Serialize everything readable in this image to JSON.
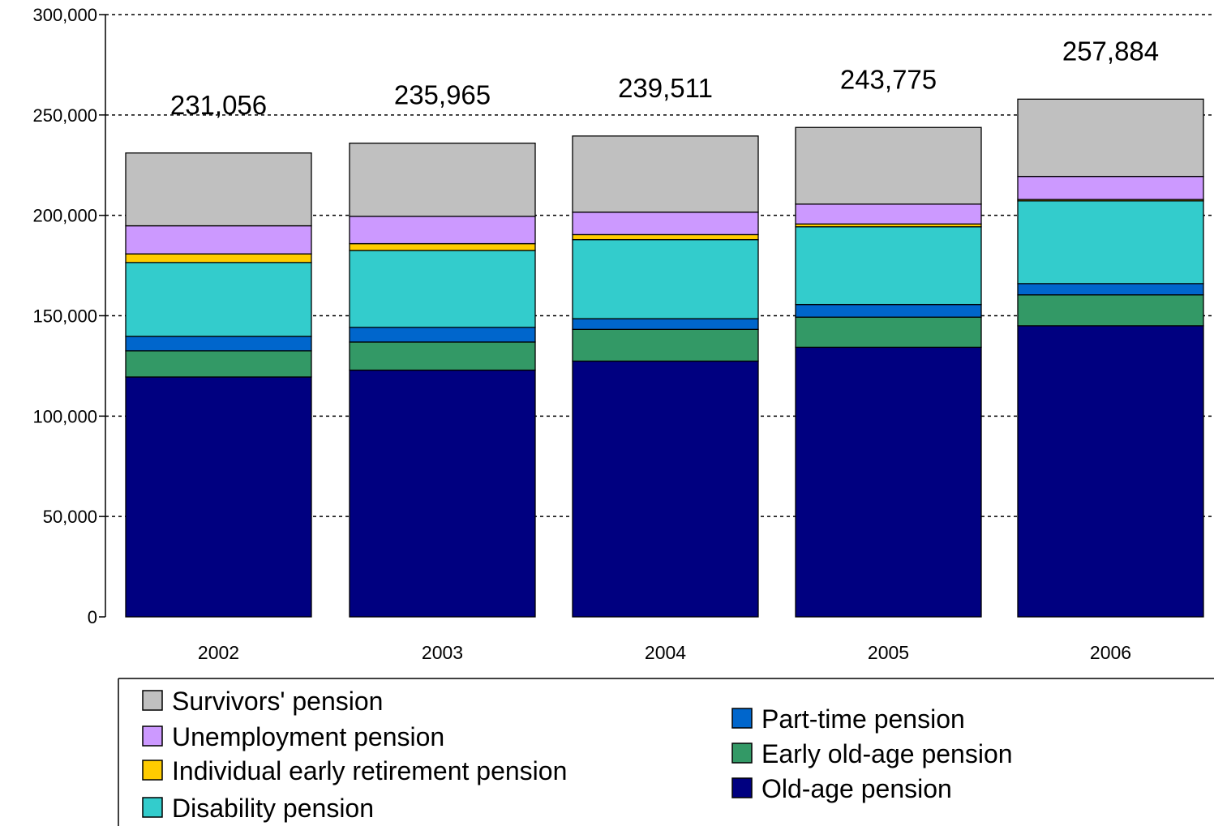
{
  "chart_data": {
    "type": "bar",
    "stacked": true,
    "title": "",
    "xlabel": "",
    "ylabel": "",
    "categories": [
      "2002",
      "2003",
      "2004",
      "2005",
      "2006"
    ],
    "ylim": [
      0,
      300000
    ],
    "yticks": [
      0,
      50000,
      100000,
      150000,
      200000,
      250000,
      300000
    ],
    "ytick_labels": [
      "0",
      "50,000",
      "100,000",
      "150,000",
      "200,000",
      "250,000",
      "300,000"
    ],
    "grid": "horizontal dotted",
    "legend_position": "bottom",
    "totals": [
      231056,
      235965,
      239511,
      243775,
      257884
    ],
    "total_labels": [
      "231,056",
      "235,965",
      "239,511",
      "243,775",
      "257,884"
    ],
    "series": [
      {
        "name": "Old-age pension",
        "color": "#000080",
        "values": [
          119500,
          122900,
          127400,
          134300,
          145000
        ]
      },
      {
        "name": "Early old-age pension",
        "color": "#339966",
        "values": [
          13000,
          14000,
          15800,
          15000,
          15400
        ]
      },
      {
        "name": "Part-time pension",
        "color": "#0066CC",
        "values": [
          7200,
          7300,
          5300,
          6300,
          5600
        ]
      },
      {
        "name": "Disability pension",
        "color": "#33CCCC",
        "values": [
          36800,
          38300,
          39400,
          38700,
          41200
        ]
      },
      {
        "name": "Individual early retirement pension",
        "color": "#FFCC00",
        "values": [
          4300,
          3400,
          2500,
          1400,
          700
        ]
      },
      {
        "name": "Unemployment pension",
        "color": "#CC99FF",
        "values": [
          14000,
          13600,
          11200,
          9900,
          11500
        ]
      },
      {
        "name": "Survivors' pension",
        "color": "#C0C0C0",
        "values": [
          36256,
          36465,
          37911,
          38175,
          38484
        ]
      }
    ],
    "legend_order": [
      "Survivors' pension",
      "Unemployment pension",
      "Individual early retirement pension",
      "Disability pension",
      "Part-time pension",
      "Early old-age pension",
      "Old-age pension"
    ]
  }
}
